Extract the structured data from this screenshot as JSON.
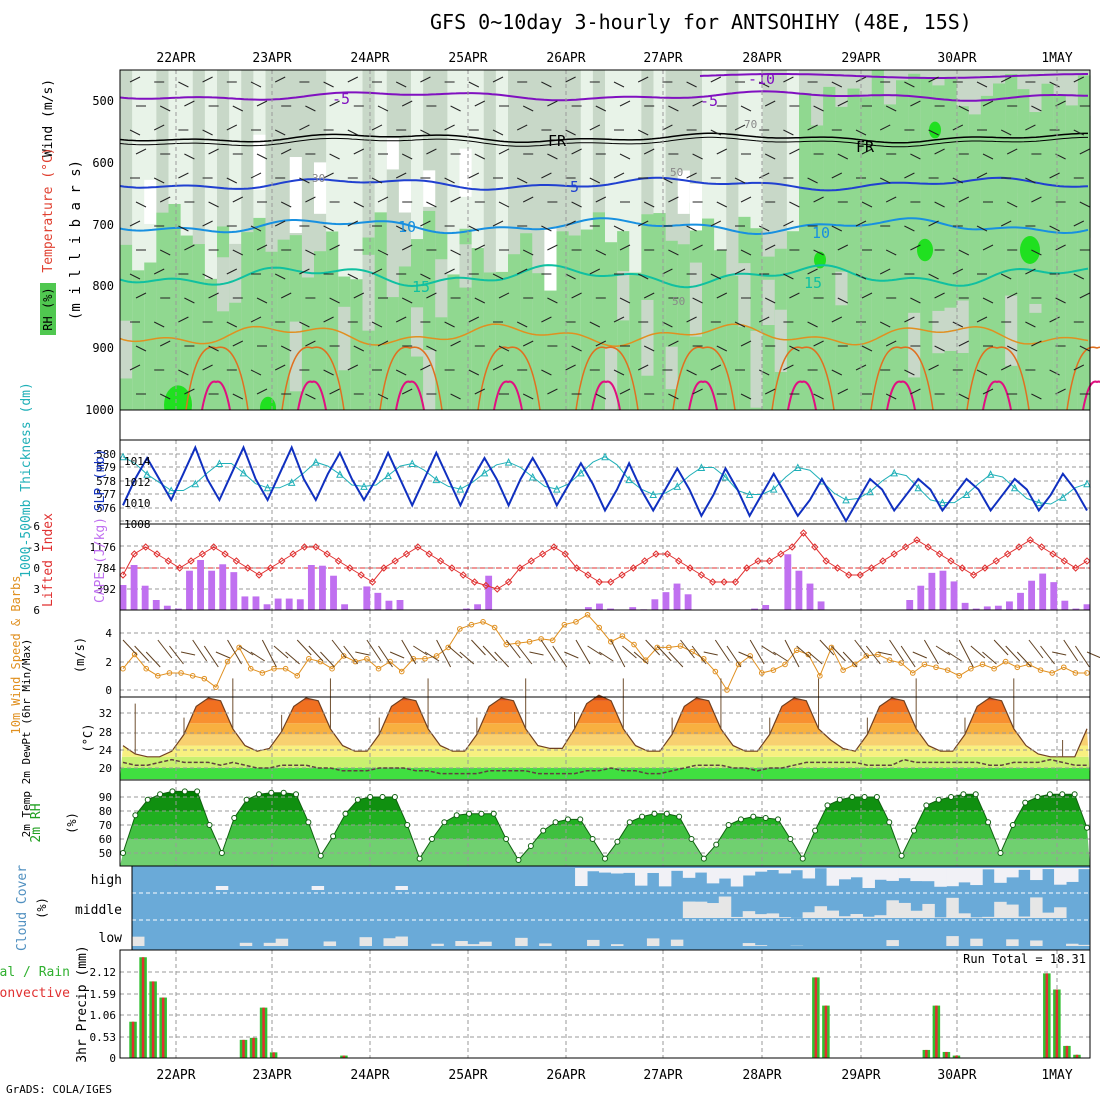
{
  "title": "GFS 0~10day 3-hourly for ANTSOHIHY (48E, 15S)",
  "credit": "GrADS: COLA/IGES",
  "dates": [
    "22APR",
    "23APR",
    "24APR",
    "25APR",
    "26APR",
    "27APR",
    "28APR",
    "29APR",
    "30APR",
    "1MAY"
  ],
  "colors": {
    "grid": "#9a9a9a",
    "rh1": "#e8f3e8",
    "rh2": "#c8d8c8",
    "rh3": "#90d890",
    "rh4": "#50c850",
    "rh5": "#20e020",
    "cloudBg": "#6aaad8",
    "cloudLight": "#f1f1f6",
    "cloudLow": "#e6e6e6",
    "purple": "#8010c0",
    "black": "#000000",
    "blue": "#2040d0",
    "lightblue": "#1890e0",
    "teal": "#10c0a0",
    "orange": "#e09020",
    "darkorange": "#e07020",
    "magenta": "#e01080",
    "slp": "#1030c0",
    "thick": "#20b0b8",
    "cape": "#c070f0",
    "li": "#e03030",
    "wind": "#e09020",
    "barb": "#604020",
    "tempFill": "#f06010",
    "precipG": "#30c030",
    "precipR": "#e03030"
  },
  "panels": {
    "upper": {
      "ylabel_rh": "RH (%)",
      "ylabel_temp": "Temperature (°C)",
      "ylabel_wind": "Wind (m/s)",
      "ylabel_mb": "(m i l l i b a r s)",
      "ticks": [
        "500",
        "600",
        "700",
        "800",
        "900",
        "1000"
      ],
      "contour_labels": [
        {
          "text": "-10",
          "t": "purple"
        },
        {
          "text": "-5",
          "t": "purple"
        },
        {
          "text": "-5",
          "t": "purple"
        },
        {
          "text": "FR",
          "t": "black"
        },
        {
          "text": "FR",
          "t": "black"
        },
        {
          "text": "5",
          "t": "blue"
        },
        {
          "text": "10",
          "t": "lightblue"
        },
        {
          "text": "10",
          "t": "lightblue"
        },
        {
          "text": "15",
          "t": "teal"
        },
        {
          "text": "15",
          "t": "teal"
        },
        {
          "text": "30",
          "t": "gray"
        },
        {
          "text": "50",
          "t": "gray"
        },
        {
          "text": "70",
          "t": "gray"
        },
        {
          "text": "50",
          "t": "gray"
        }
      ]
    },
    "slp": {
      "ylabel_left": "1000-500mb Thickness (dm)",
      "ylabel_right": "SLP (mb)",
      "left_ticks": [
        "580",
        "579",
        "578",
        "577",
        "576"
      ],
      "right_ticks": [
        "1014",
        "1012",
        "1010",
        "1008"
      ]
    },
    "cape": {
      "ylabel_li": "Lifted Index",
      "ylabel_cape": "CAPE (J/kg)",
      "li_ticks": [
        "-6",
        "-3",
        "0",
        "3",
        "6"
      ],
      "cape_ticks": [
        "1176",
        "784",
        "392"
      ]
    },
    "wind": {
      "ylabel": "10m Wind Speed & Barbs",
      "unit": "(m/s)",
      "ticks": [
        "4",
        "2",
        "0"
      ]
    },
    "temp": {
      "ylabel": "2m Temp 2m DewPt (6hr Min/Max)",
      "unit": "(°C)",
      "ticks": [
        "32",
        "28",
        "24",
        "20"
      ]
    },
    "rh": {
      "ylabel": "2m RH",
      "unit": "(%)",
      "ticks": [
        "90",
        "80",
        "70",
        "60",
        "50"
      ]
    },
    "cloud": {
      "ylabel": "Cloud Cover",
      "unit": "(%)",
      "levels": [
        "high",
        "middle",
        "low"
      ]
    },
    "precip": {
      "ylabel_total": "Total / Rain",
      "ylabel_conv": "Convective",
      "ylabel": "3hr Precip (mm)",
      "ticks": [
        "2.12",
        "1.59",
        "1.06",
        "0.53",
        "0"
      ],
      "run_total": "Run Total = 18.31"
    }
  },
  "chart_data": [
    {
      "type": "line",
      "name": "SLP (mb)",
      "values": [
        1009.5,
        1012,
        1014,
        1012,
        1010,
        1012.5,
        1015,
        1012,
        1010,
        1012.5,
        1015,
        1012,
        1010,
        1012.5,
        1015,
        1012,
        1010,
        1012.5,
        1014.5,
        1012,
        1010,
        1012,
        1014.5,
        1012,
        1009.5,
        1012,
        1014.5,
        1012,
        1009.5,
        1012,
        1014,
        1012,
        1009.5,
        1012,
        1014,
        1012,
        1009.5,
        1011.5,
        1013.5,
        1011.5,
        1009,
        1011,
        1013.5,
        1011,
        1009,
        1011,
        1013,
        1011,
        1008.5,
        1010.5,
        1013,
        1011,
        1008.5,
        1010.5,
        1012.5,
        1010.5,
        1008.5,
        1010,
        1012,
        1010,
        1008,
        1010,
        1012,
        1011,
        1009,
        1010.5,
        1012,
        1011,
        1009,
        1010.5,
        1012,
        1011,
        1009,
        1010.5,
        1012,
        1011,
        1009,
        1010.5,
        1012.5,
        1011,
        1009
      ]
    },
    {
      "type": "line",
      "name": "1000-500mb Thickness (dm)",
      "values": [
        579.8,
        579.3,
        578.5,
        577.9,
        577.3,
        577.3,
        577.8,
        578.6,
        579.3,
        579.3,
        578.6,
        577.8,
        577.5,
        577.5,
        577.9,
        578.6,
        579.4,
        579.1,
        578.5,
        577.7,
        577.6,
        577.7,
        578.4,
        579.1,
        579.3,
        578.8,
        578.1,
        577.6,
        577.4,
        577.9,
        578.6,
        579.2,
        579.4,
        579,
        578.3,
        577.6,
        577.4,
        577.8,
        578.6,
        579.4,
        579.8,
        579.2,
        578.1,
        577.4,
        577,
        577.1,
        577.6,
        578.4,
        579,
        579,
        578.3,
        577.3,
        577,
        577,
        577.4,
        578.3,
        579,
        578.8,
        578,
        577.1,
        576.6,
        576.7,
        577.2,
        578,
        578.6,
        578.4,
        577.5,
        576.6,
        576.4,
        576.4,
        577,
        577.8,
        578.5,
        578.3,
        577.5,
        576.7,
        576.4,
        576.3,
        576.8,
        577.5,
        577.8
      ]
    },
    {
      "type": "bar",
      "name": "CAPE (J/kg)",
      "values": [
        700,
        1260,
        680,
        280,
        120,
        40,
        1100,
        1400,
        1100,
        1280,
        1060,
        380,
        380,
        160,
        320,
        320,
        300,
        1260,
        1240,
        960,
        160,
        0,
        660,
        480,
        260,
        280,
        0,
        0,
        0,
        0,
        0,
        40,
        160,
        960,
        0,
        0,
        0,
        0,
        0,
        0,
        0,
        0,
        80,
        180,
        40,
        0,
        80,
        20,
        300,
        500,
        740,
        440,
        0,
        0,
        0,
        0,
        0,
        40,
        140,
        0,
        1560,
        1100,
        740,
        240,
        0,
        0,
        0,
        0,
        0,
        0,
        0,
        280,
        680,
        1040,
        1100,
        800,
        200,
        40,
        100,
        120,
        240,
        480,
        820,
        1020,
        780,
        260,
        40,
        160
      ]
    },
    {
      "type": "line",
      "name": "Lifted Index",
      "values": [
        1,
        -2,
        -3,
        -2,
        -1,
        0,
        -1,
        -2,
        -3,
        -2,
        -1,
        0,
        1,
        0,
        -1,
        -2,
        -3,
        -3,
        -2,
        -1,
        0,
        1,
        2,
        0,
        -1,
        -2,
        -3,
        -2,
        -1,
        0,
        1,
        2,
        2.5,
        3,
        2,
        0,
        -1,
        -2,
        -3,
        -2,
        0,
        1,
        2,
        2,
        1,
        0,
        -1,
        -2,
        -2,
        -1,
        0,
        1,
        2,
        2,
        2,
        0,
        -1,
        -1,
        -2,
        -3,
        -5,
        -3,
        -1,
        0,
        1,
        1,
        0,
        -1,
        -2,
        -3,
        -4,
        -3,
        -2,
        -1,
        0,
        1,
        0,
        -1,
        -2,
        -3,
        -4,
        -3,
        -2,
        -1,
        0,
        -1
      ]
    },
    {
      "type": "line",
      "name": "10m Wind Speed (m/s)",
      "values": [
        1.5,
        2.5,
        1.5,
        1,
        1.2,
        1.2,
        1,
        0.8,
        0.2,
        2,
        3,
        1.5,
        1.2,
        1.5,
        1.5,
        1,
        2.2,
        2,
        1.5,
        2.4,
        2,
        2.2,
        1.5,
        2,
        1.3,
        2.2,
        2.2,
        2.4,
        3,
        4.3,
        4.6,
        4.8,
        4.4,
        3.2,
        3.3,
        3.4,
        3.6,
        3.5,
        4.6,
        4.8,
        5.3,
        4.4,
        3.4,
        3.8,
        3.2,
        2.1,
        3,
        3,
        3.1,
        2.7,
        2.2,
        1.3,
        0,
        1.8,
        2.4,
        1.2,
        1.4,
        1.8,
        2.8,
        2.5,
        1,
        3,
        1.4,
        1.8,
        2.4,
        2.5,
        2.1,
        1.9,
        1.2,
        1.8,
        1.6,
        1.4,
        1,
        1.5,
        1.8,
        1.5,
        2,
        1.6,
        1.8,
        1.4,
        1.2,
        1.6,
        1.2,
        1.2
      ]
    },
    {
      "type": "area",
      "name": "2m Temp (°C)",
      "values": [
        24,
        22.5,
        22,
        22,
        23,
        26,
        31,
        32.5,
        32,
        27,
        24,
        23,
        23.5,
        26.5,
        31,
        32.5,
        32,
        27,
        24,
        23,
        23,
        26,
        31,
        32.5,
        32,
        27,
        24,
        23,
        23,
        26,
        31,
        32.5,
        32,
        27,
        24,
        23.5,
        23.5,
        27,
        31.5,
        33,
        32,
        27,
        24,
        23,
        23,
        26,
        31,
        32.5,
        32,
        27,
        24,
        23,
        23,
        26,
        31,
        32.5,
        32,
        27,
        25,
        23.5,
        23,
        26,
        31,
        32.5,
        32,
        27,
        24,
        23,
        23,
        26,
        31,
        32.5,
        32,
        27,
        24,
        22.5,
        22,
        22,
        22,
        27
      ]
    },
    {
      "type": "line",
      "name": "2m DewPt (°C)",
      "values": [
        21,
        20.5,
        20.5,
        21,
        21.5,
        21,
        21,
        21,
        20.5,
        21,
        20.5,
        20,
        20,
        20.5,
        20.5,
        20.5,
        20,
        20,
        19.5,
        19.5,
        19.5,
        20,
        20,
        20,
        19.5,
        19.5,
        19,
        19,
        19,
        19,
        19.5,
        19.5,
        19.5,
        19.5,
        19,
        19,
        19,
        19,
        19.5,
        19.5,
        20,
        19.5,
        19.5,
        19,
        19,
        19.5,
        20,
        20.5,
        20.5,
        20.5,
        20,
        20,
        19.5,
        20,
        20,
        20.5,
        21,
        21,
        21,
        21,
        21,
        20.5,
        20.5,
        20.5,
        21.5,
        21,
        21,
        21,
        21,
        21,
        21,
        20.5,
        20.5,
        21,
        21,
        21,
        21.5,
        21,
        20.5,
        20.5
      ]
    },
    {
      "type": "area",
      "name": "2m RH (%)",
      "values": [
        50,
        77,
        88,
        92,
        94,
        94,
        94,
        70,
        50,
        75,
        88,
        92,
        93,
        93,
        92,
        72,
        48,
        62,
        78,
        88,
        90,
        90,
        90,
        70,
        46,
        60,
        72,
        77,
        78,
        78,
        78,
        60,
        45,
        55,
        66,
        72,
        74,
        74,
        60,
        46,
        58,
        72,
        76,
        78,
        78,
        76,
        60,
        46,
        56,
        70,
        74,
        76,
        75,
        74,
        60,
        46,
        66,
        84,
        88,
        90,
        90,
        90,
        72,
        48,
        66,
        84,
        88,
        90,
        92,
        92,
        72,
        50,
        70,
        86,
        90,
        92,
        92,
        92,
        68
      ]
    },
    {
      "type": "bar",
      "name": "3hr Precip Total (mm)",
      "values": [
        0,
        0.9,
        2.5,
        1.9,
        1.5,
        0,
        0,
        0,
        0,
        0,
        0,
        0,
        0.45,
        0.5,
        1.25,
        0.14,
        0,
        0,
        0,
        0,
        0,
        0,
        0.06,
        0,
        0,
        0,
        0,
        0,
        0,
        0,
        0,
        0,
        0,
        0,
        0,
        0,
        0,
        0,
        0,
        0,
        0,
        0,
        0,
        0,
        0,
        0,
        0,
        0,
        0,
        0,
        0,
        0,
        0,
        0,
        0,
        0,
        0,
        0,
        0,
        0,
        0,
        0,
        0,
        0,
        0,
        0,
        0,
        0,
        0,
        2.0,
        1.3,
        0,
        0,
        0,
        0,
        0,
        0,
        0,
        0,
        0,
        0.2,
        1.3,
        0.15,
        0.06,
        0,
        0,
        0,
        0,
        0,
        0,
        0,
        0,
        2.1,
        1.7,
        0.3,
        0.08,
        0
      ]
    }
  ]
}
